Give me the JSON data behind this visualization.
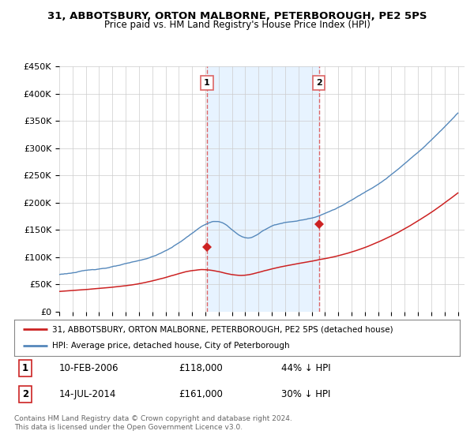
{
  "title": "31, ABBOTSBURY, ORTON MALBORNE, PETERBOROUGH, PE2 5PS",
  "subtitle": "Price paid vs. HM Land Registry's House Price Index (HPI)",
  "ylabel_max": 450000,
  "yticks": [
    0,
    50000,
    100000,
    150000,
    200000,
    250000,
    300000,
    350000,
    400000,
    450000
  ],
  "ytick_labels": [
    "£0",
    "£50K",
    "£100K",
    "£150K",
    "£200K",
    "£250K",
    "£300K",
    "£350K",
    "£400K",
    "£450K"
  ],
  "xmin": 1995.0,
  "xmax": 2025.5,
  "sale1_year": 2006.11,
  "sale1_price": 118000,
  "sale1_label": "10-FEB-2006",
  "sale1_pct": "44% ↓ HPI",
  "sale2_year": 2014.54,
  "sale2_price": 161000,
  "sale2_label": "14-JUL-2014",
  "sale2_pct": "30% ↓ HPI",
  "red_color": "#cc2222",
  "blue_color": "#5588bb",
  "dashed_color": "#dd6666",
  "shade_color": "#ddeeff",
  "legend_line1": "31, ABBOTSBURY, ORTON MALBORNE, PETERBOROUGH, PE2 5PS (detached house)",
  "legend_line2": "HPI: Average price, detached house, City of Peterborough",
  "footer1": "Contains HM Land Registry data © Crown copyright and database right 2024.",
  "footer2": "This data is licensed under the Open Government Licence v3.0.",
  "bg_color": "#ffffff",
  "plot_bg": "#ffffff"
}
